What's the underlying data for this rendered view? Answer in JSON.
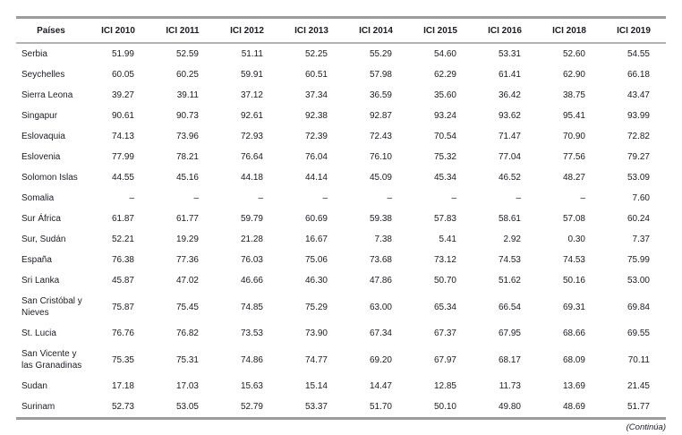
{
  "table": {
    "columns": [
      "Países",
      "ICI 2010",
      "ICI 2011",
      "ICI 2012",
      "ICI 2013",
      "ICI 2014",
      "ICI 2015",
      "ICI 2016",
      "ICI 2018",
      "ICI 2019"
    ],
    "rows": [
      {
        "country": "Serbia",
        "values": [
          "51.99",
          "52.59",
          "51.11",
          "52.25",
          "55.29",
          "54.60",
          "53.31",
          "52.60",
          "54.55"
        ]
      },
      {
        "country": "Seychelles",
        "values": [
          "60.05",
          "60.25",
          "59.91",
          "60.51",
          "57.98",
          "62.29",
          "61.41",
          "62.90",
          "66.18"
        ]
      },
      {
        "country": "Sierra Leona",
        "values": [
          "39.27",
          "39.11",
          "37.12",
          "37.34",
          "36.59",
          "35.60",
          "36.42",
          "38.75",
          "43.47"
        ]
      },
      {
        "country": "Singapur",
        "values": [
          "90.61",
          "90.73",
          "92.61",
          "92.38",
          "92.87",
          "93.24",
          "93.62",
          "95.41",
          "93.99"
        ]
      },
      {
        "country": "Eslovaquia",
        "values": [
          "74.13",
          "73.96",
          "72.93",
          "72.39",
          "72.43",
          "70.54",
          "71.47",
          "70.90",
          "72.82"
        ]
      },
      {
        "country": "Eslovenia",
        "values": [
          "77.99",
          "78.21",
          "76.64",
          "76.04",
          "76.10",
          "75.32",
          "77.04",
          "77.56",
          "79.27"
        ]
      },
      {
        "country": "Solomon Islas",
        "values": [
          "44.55",
          "45.16",
          "44.18",
          "44.14",
          "45.09",
          "45.34",
          "46.52",
          "48.27",
          "53.09"
        ]
      },
      {
        "country": "Somalia",
        "values": [
          "–",
          "–",
          "–",
          "–",
          "–",
          "–",
          "–",
          "–",
          "7.60"
        ]
      },
      {
        "country": "Sur África",
        "values": [
          "61.87",
          "61.77",
          "59.79",
          "60.69",
          "59.38",
          "57.83",
          "58.61",
          "57.08",
          "60.24"
        ]
      },
      {
        "country": "Sur, Sudán",
        "values": [
          "52.21",
          "19.29",
          "21.28",
          "16.67",
          "7.38",
          "5.41",
          "2.92",
          "0.30",
          "7.37"
        ]
      },
      {
        "country": "España",
        "values": [
          "76.38",
          "77.36",
          "76.03",
          "75.06",
          "73.68",
          "73.12",
          "74.53",
          "74.53",
          "75.99"
        ]
      },
      {
        "country": "Sri Lanka",
        "values": [
          "45.87",
          "47.02",
          "46.66",
          "46.30",
          "47.86",
          "50.70",
          "51.62",
          "50.16",
          "53.00"
        ]
      },
      {
        "country": "San Cristóbal y Nieves",
        "values": [
          "75.87",
          "75.45",
          "74.85",
          "75.29",
          "63.00",
          "65.34",
          "66.54",
          "69.31",
          "69.84"
        ]
      },
      {
        "country": "St. Lucia",
        "values": [
          "76.76",
          "76.82",
          "73.53",
          "73.90",
          "67.34",
          "67.37",
          "67.95",
          "68.66",
          "69.55"
        ]
      },
      {
        "country": "San Vicente y las Granadinas",
        "values": [
          "75.35",
          "75.31",
          "74.86",
          "74.77",
          "69.20",
          "67.97",
          "68.17",
          "68.09",
          "70.11"
        ]
      },
      {
        "country": "Sudan",
        "values": [
          "17.18",
          "17.03",
          "15.63",
          "15.14",
          "14.47",
          "12.85",
          "11.73",
          "13.69",
          "21.45"
        ]
      },
      {
        "country": "Surinam",
        "values": [
          "52.73",
          "53.05",
          "52.79",
          "53.37",
          "51.70",
          "50.10",
          "49.80",
          "48.69",
          "51.77"
        ]
      }
    ],
    "footer_note": "(Continúa)"
  },
  "colors": {
    "text": "#1b1b26",
    "border_heavy": "#9c9c9c",
    "border_light": "#b2b2b2",
    "background": "#ffffff"
  }
}
